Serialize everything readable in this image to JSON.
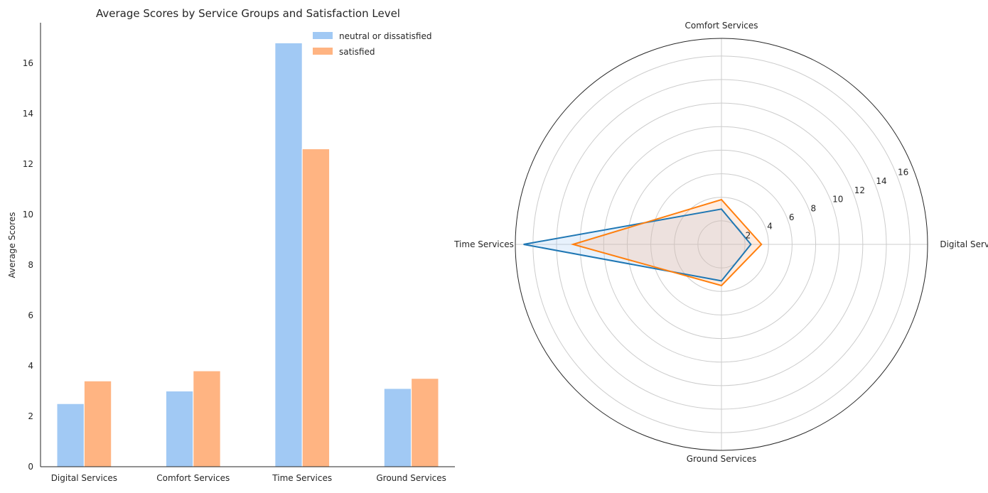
{
  "chart_data": [
    {
      "type": "bar",
      "title": "Average Scores by Service Groups and Satisfaction Level",
      "xlabel": "",
      "ylabel": "Average Scores",
      "categories": [
        "Digital Services",
        "Comfort Services",
        "Time Services",
        "Ground Services"
      ],
      "series": [
        {
          "name": "neutral or dissatisfied",
          "values": [
            2.5,
            3.0,
            16.8,
            3.1
          ],
          "color": "#a1c9f4"
        },
        {
          "name": "satisfied",
          "values": [
            3.4,
            3.8,
            12.6,
            3.5
          ],
          "color": "#ffb482"
        }
      ],
      "ylim": [
        0,
        17.6
      ],
      "yticks": [
        0,
        2,
        4,
        6,
        8,
        10,
        12,
        14,
        16
      ],
      "legend": "top-right",
      "grid": false
    },
    {
      "type": "radar",
      "title": "",
      "axes": [
        "Digital Services",
        "Comfort Services",
        "Time Services",
        "Ground Services"
      ],
      "series": [
        {
          "name": "neutral or dissatisfied",
          "values": [
            2.5,
            3.0,
            16.8,
            3.1
          ],
          "color": "#1f77b4",
          "fill": "#a1c9f4"
        },
        {
          "name": "satisfied",
          "values": [
            3.4,
            3.8,
            12.6,
            3.5
          ],
          "color": "#ff7f0e",
          "fill": "#ffb482"
        }
      ],
      "rlim": [
        0,
        17.5
      ],
      "rticks": [
        2,
        4,
        6,
        8,
        10,
        12,
        14,
        16
      ],
      "grid": true
    }
  ]
}
